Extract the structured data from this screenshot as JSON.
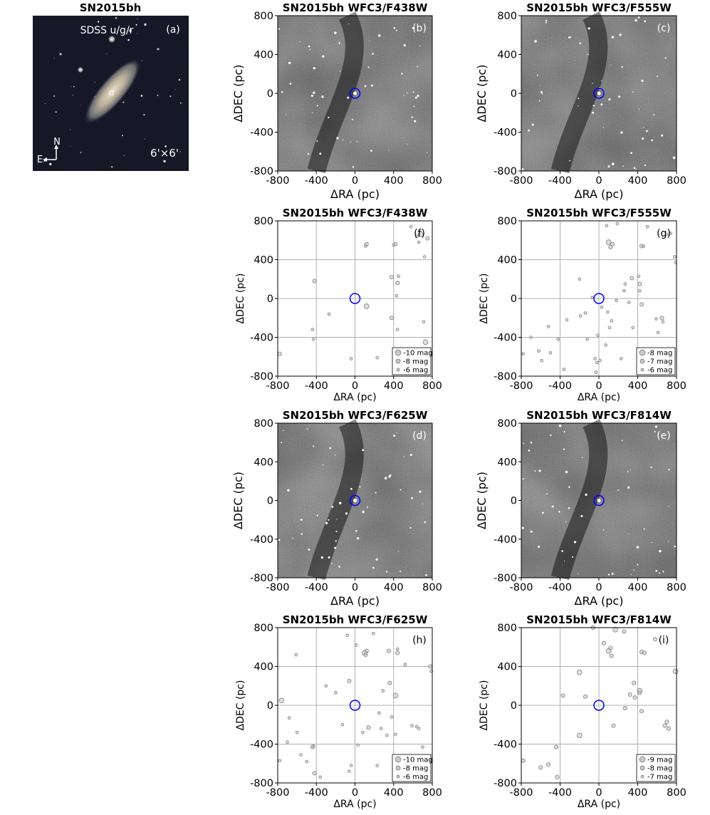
{
  "figure_title": "SN2015bh",
  "colors": {
    "circle_blue": "#0000ff",
    "grid": "#b0b0b0",
    "marker_edge": "#8a8a8a",
    "marker_fill": "#c8c8c8",
    "image_bg_dark": "#1a1a1a"
  },
  "sdss_panel": {
    "label": "(a)",
    "bands": "SDSS u/g/r",
    "fov": "6'×6'",
    "compass_n": "N",
    "compass_e": "E"
  },
  "chart_data": [
    {
      "id": "b",
      "type": "image",
      "label": "(b)",
      "title": "SN2015bh WFC3/F438W",
      "xlabel": "ΔRA (pc)",
      "ylabel": "ΔDEC (pc)",
      "xlim": [
        -800,
        800
      ],
      "ylim": [
        -800,
        800
      ],
      "xticks": [
        "-800",
        "-400",
        "0",
        "400",
        "800"
      ],
      "yticks": [
        "-800",
        "-400",
        "0",
        "400",
        "800"
      ],
      "target": [
        0,
        0
      ]
    },
    {
      "id": "c",
      "type": "image",
      "label": "(c)",
      "title": "SN2015bh WFC3/F555W",
      "xlabel": "ΔRA (pc)",
      "ylabel": "ΔDEC (pc)",
      "xlim": [
        -800,
        800
      ],
      "ylim": [
        -800,
        800
      ],
      "xticks": [
        "-800",
        "-400",
        "0",
        "400",
        "800"
      ],
      "yticks": [
        "-800",
        "-400",
        "0",
        "400",
        "800"
      ],
      "target": [
        0,
        0
      ]
    },
    {
      "id": "f",
      "type": "scatter",
      "label": "(f)",
      "title": "SN2015bh WFC3/F438W",
      "xlabel": "ΔRA (pc)",
      "ylabel": "ΔDEC (pc)",
      "xlim": [
        -800,
        800
      ],
      "ylim": [
        -800,
        800
      ],
      "xticks": [
        "-800",
        "-400",
        "0",
        "400",
        "800"
      ],
      "yticks": [
        "-800",
        "-400",
        "0",
        "400",
        "800"
      ],
      "grid": true,
      "target": [
        0,
        0
      ],
      "legend_position": "lower right",
      "legend": [
        {
          "label": "-10 mag",
          "mag": -10
        },
        {
          "label": "-8 mag",
          "mag": -8
        },
        {
          "label": "-6 mag",
          "mag": -6
        }
      ],
      "points": [
        [
          -780,
          -570,
          -7
        ],
        [
          -420,
          180,
          -7
        ],
        [
          -440,
          -320,
          -6
        ],
        [
          -430,
          -420,
          -6
        ],
        [
          -270,
          -160,
          -6
        ],
        [
          -40,
          -620,
          -6
        ],
        [
          120,
          -80,
          -8
        ],
        [
          120,
          560,
          -7
        ],
        [
          110,
          540,
          -6
        ],
        [
          230,
          -610,
          -6
        ],
        [
          420,
          560,
          -7
        ],
        [
          400,
          550,
          -6
        ],
        [
          380,
          220,
          -7
        ],
        [
          450,
          230,
          -6
        ],
        [
          440,
          160,
          -7
        ],
        [
          430,
          30,
          -6
        ],
        [
          380,
          -200,
          -7
        ],
        [
          440,
          -320,
          -6
        ],
        [
          580,
          740,
          -6
        ],
        [
          640,
          640,
          -6
        ],
        [
          680,
          660,
          -8
        ],
        [
          660,
          580,
          -6
        ],
        [
          750,
          620,
          -7
        ],
        [
          710,
          -240,
          -6
        ],
        [
          730,
          -450,
          -8
        ],
        [
          720,
          430,
          -6
        ]
      ]
    },
    {
      "id": "g",
      "type": "scatter",
      "label": "(g)",
      "title": "SN2015bh WFC3/F555W",
      "xlabel": "ΔRA (pc)",
      "ylabel": "ΔDEC (pc)",
      "xlim": [
        -800,
        800
      ],
      "ylim": [
        -800,
        800
      ],
      "xticks": [
        "-800",
        "-400",
        "0",
        "400",
        "800"
      ],
      "yticks": [
        "-800",
        "-400",
        "0",
        "400",
        "800"
      ],
      "grid": true,
      "target": [
        0,
        0
      ],
      "legend_position": "lower right",
      "legend": [
        {
          "label": "-8 mag",
          "mag": -8
        },
        {
          "label": "-7 mag",
          "mag": -7
        },
        {
          "label": "-6 mag",
          "mag": -6
        }
      ],
      "points": [
        [
          -780,
          -570,
          -6
        ],
        [
          -700,
          -400,
          -6
        ],
        [
          -620,
          -540,
          -6
        ],
        [
          -590,
          -640,
          -6
        ],
        [
          -520,
          -290,
          -6
        ],
        [
          -500,
          -560,
          -6
        ],
        [
          -420,
          -420,
          -6
        ],
        [
          -360,
          -730,
          -6
        ],
        [
          -330,
          -220,
          -6
        ],
        [
          -190,
          -180,
          -6
        ],
        [
          -140,
          -150,
          -6
        ],
        [
          -120,
          -420,
          -6
        ],
        [
          -70,
          10,
          -6
        ],
        [
          -40,
          -620,
          -6
        ],
        [
          -30,
          -760,
          -6
        ],
        [
          -20,
          -660,
          -6
        ],
        [
          10,
          -640,
          -6
        ],
        [
          -10,
          -380,
          -6
        ],
        [
          30,
          -90,
          -6
        ],
        [
          90,
          -140,
          -6
        ],
        [
          110,
          -300,
          -6
        ],
        [
          130,
          -230,
          -6
        ],
        [
          100,
          580,
          -8
        ],
        [
          140,
          560,
          -7
        ],
        [
          120,
          530,
          -7
        ],
        [
          80,
          750,
          -6
        ],
        [
          190,
          770,
          -6
        ],
        [
          180,
          -20,
          -6
        ],
        [
          230,
          -620,
          -6
        ],
        [
          270,
          150,
          -6
        ],
        [
          310,
          -40,
          -6
        ],
        [
          340,
          210,
          -7
        ],
        [
          350,
          -300,
          -6
        ],
        [
          410,
          230,
          -6
        ],
        [
          420,
          150,
          -7
        ],
        [
          420,
          80,
          -6
        ],
        [
          440,
          -60,
          -7
        ],
        [
          440,
          540,
          -7
        ],
        [
          460,
          540,
          -6
        ],
        [
          500,
          740,
          -6
        ],
        [
          590,
          -210,
          -6
        ],
        [
          610,
          -350,
          -6
        ],
        [
          650,
          -200,
          -7
        ],
        [
          660,
          -240,
          -6
        ],
        [
          700,
          660,
          -6
        ],
        [
          740,
          670,
          -6
        ],
        [
          780,
          430,
          -6
        ],
        [
          790,
          370,
          -6
        ],
        [
          70,
          -480,
          -6
        ],
        [
          -200,
          200,
          -6
        ],
        [
          260,
          80,
          -6
        ]
      ]
    },
    {
      "id": "d",
      "type": "image",
      "label": "(d)",
      "title": "SN2015bh WFC3/F625W",
      "xlabel": "ΔRA (pc)",
      "ylabel": "ΔDEC (pc)",
      "xlim": [
        -800,
        800
      ],
      "ylim": [
        -800,
        800
      ],
      "xticks": [
        "-800",
        "-400",
        "0",
        "400",
        "800"
      ],
      "yticks": [
        "-800",
        "-400",
        "0",
        "400",
        "800"
      ],
      "target": [
        0,
        0
      ]
    },
    {
      "id": "e",
      "type": "image",
      "label": "(e)",
      "title": "SN2015bh WFC3/F814W",
      "xlabel": "ΔRA (pc)",
      "ylabel": "ΔDEC (pc)",
      "xlim": [
        -800,
        800
      ],
      "ylim": [
        -800,
        800
      ],
      "xticks": [
        "-800",
        "-400",
        "0",
        "400",
        "800"
      ],
      "yticks": [
        "-800",
        "-400",
        "0",
        "400",
        "800"
      ],
      "target": [
        0,
        0
      ]
    },
    {
      "id": "h",
      "type": "scatter",
      "label": "(h)",
      "title": "SN2015bh WFC3/F625W",
      "xlabel": "ΔRA (pc)",
      "ylabel": "ΔDEC (pc)",
      "xlim": [
        -800,
        800
      ],
      "ylim": [
        -800,
        800
      ],
      "xticks": [
        "-800",
        "-400",
        "0",
        "400",
        "800"
      ],
      "yticks": [
        "-800",
        "-400",
        "0",
        "400",
        "800"
      ],
      "grid": true,
      "target": [
        0,
        0
      ],
      "legend_position": "lower right",
      "legend": [
        {
          "label": "-10 mag",
          "mag": -10
        },
        {
          "label": "-8 mag",
          "mag": -8
        },
        {
          "label": "-6 mag",
          "mag": -6
        }
      ],
      "points": [
        [
          -760,
          50,
          -8
        ],
        [
          -780,
          -570,
          -6
        ],
        [
          -700,
          -380,
          -6
        ],
        [
          -610,
          520,
          -6
        ],
        [
          -600,
          -280,
          -6
        ],
        [
          -560,
          -510,
          -6
        ],
        [
          -500,
          -580,
          -6
        ],
        [
          -440,
          -430,
          -7
        ],
        [
          -430,
          -420,
          -6
        ],
        [
          -420,
          -700,
          -7
        ],
        [
          -360,
          -740,
          -6
        ],
        [
          -300,
          200,
          -6
        ],
        [
          -200,
          130,
          -6
        ],
        [
          -130,
          -200,
          -6
        ],
        [
          -60,
          250,
          -7
        ],
        [
          -80,
          720,
          -6
        ],
        [
          -60,
          -680,
          -6
        ],
        [
          -40,
          -620,
          -6
        ],
        [
          30,
          -410,
          -6
        ],
        [
          10,
          620,
          -6
        ],
        [
          80,
          -280,
          -6
        ],
        [
          120,
          560,
          -7
        ],
        [
          100,
          540,
          -8
        ],
        [
          110,
          520,
          -7
        ],
        [
          140,
          -230,
          -7
        ],
        [
          190,
          740,
          -6
        ],
        [
          230,
          -620,
          -6
        ],
        [
          250,
          -80,
          -6
        ],
        [
          270,
          -240,
          -6
        ],
        [
          290,
          150,
          -6
        ],
        [
          330,
          -310,
          -6
        ],
        [
          350,
          560,
          -7
        ],
        [
          360,
          230,
          -7
        ],
        [
          380,
          -120,
          -6
        ],
        [
          420,
          -300,
          -6
        ],
        [
          420,
          100,
          -8
        ],
        [
          440,
          580,
          -6
        ],
        [
          440,
          540,
          -7
        ],
        [
          520,
          420,
          -6
        ],
        [
          590,
          -210,
          -6
        ],
        [
          640,
          -220,
          -6
        ],
        [
          660,
          -240,
          -6
        ],
        [
          700,
          -430,
          -6
        ],
        [
          720,
          -600,
          -7
        ],
        [
          780,
          400,
          -7
        ],
        [
          790,
          350,
          -6
        ],
        [
          -680,
          -130,
          -6
        ]
      ]
    },
    {
      "id": "i",
      "type": "scatter",
      "label": "(i)",
      "title": "SN2015bh WFC3/F814W",
      "xlabel": "ΔRA (pc)",
      "ylabel": "ΔDEC (pc)",
      "xlim": [
        -800,
        800
      ],
      "ylim": [
        -800,
        800
      ],
      "xticks": [
        "-800",
        "-400",
        "0",
        "400",
        "800"
      ],
      "yticks": [
        "-800",
        "-400",
        "0",
        "400",
        "800"
      ],
      "grid": true,
      "target": [
        0,
        0
      ],
      "legend_position": "lower right",
      "legend": [
        {
          "label": "-9 mag",
          "mag": -9
        },
        {
          "label": "-8 mag",
          "mag": -8
        },
        {
          "label": "-7 mag",
          "mag": -7
        }
      ],
      "points": [
        [
          -780,
          -570,
          -7
        ],
        [
          -600,
          -640,
          -7
        ],
        [
          -520,
          -610,
          -7
        ],
        [
          -440,
          -430,
          -7
        ],
        [
          -430,
          -740,
          -7
        ],
        [
          -370,
          100,
          -7
        ],
        [
          -200,
          340,
          -8
        ],
        [
          -200,
          -310,
          -8
        ],
        [
          -140,
          90,
          -7
        ],
        [
          -60,
          800,
          -7
        ],
        [
          50,
          640,
          -7
        ],
        [
          100,
          560,
          -8
        ],
        [
          120,
          590,
          -7
        ],
        [
          130,
          510,
          -7
        ],
        [
          170,
          780,
          -8
        ],
        [
          150,
          -210,
          -7
        ],
        [
          260,
          760,
          -7
        ],
        [
          270,
          -30,
          -7
        ],
        [
          320,
          110,
          -7
        ],
        [
          360,
          230,
          -7
        ],
        [
          370,
          80,
          -7
        ],
        [
          420,
          150,
          -8
        ],
        [
          420,
          130,
          -7
        ],
        [
          440,
          -60,
          -7
        ],
        [
          440,
          550,
          -7
        ],
        [
          470,
          540,
          -7
        ],
        [
          580,
          680,
          -7
        ],
        [
          680,
          -210,
          -7
        ],
        [
          700,
          -170,
          -7
        ],
        [
          720,
          -240,
          -7
        ],
        [
          790,
          350,
          -8
        ]
      ]
    }
  ]
}
